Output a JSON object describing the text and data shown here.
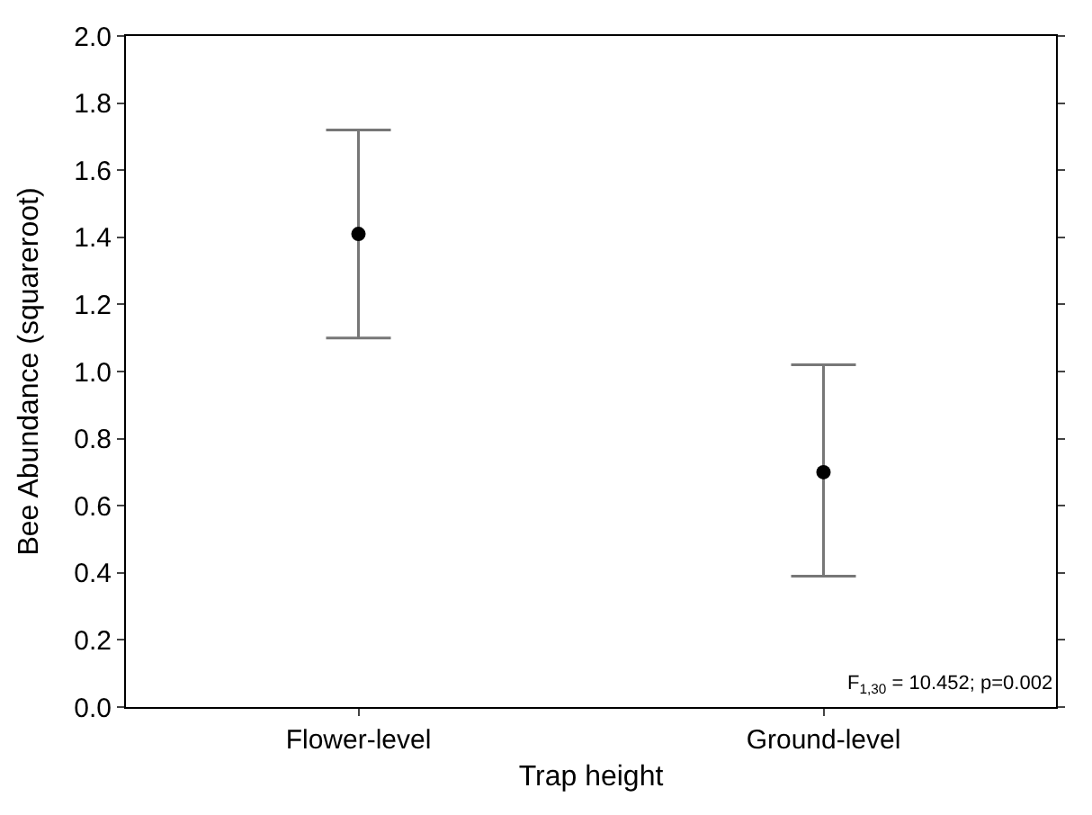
{
  "chart_data": {
    "type": "scatter",
    "xlabel": "Trap height",
    "ylabel": "Bee Abundance (squareroot)",
    "categories": [
      "Flower-level",
      "Ground-level"
    ],
    "series": [
      {
        "color": "#000000",
        "values": [
          1.41,
          0.7
        ],
        "errors": [
          [
            1.1,
            1.72
          ],
          [
            0.39,
            1.02
          ]
        ]
      }
    ],
    "ylim": [
      0,
      2.0
    ],
    "yticks": [
      {
        "value": 0,
        "label": "0.0"
      },
      0.2,
      0.4,
      0.6,
      0.8,
      {
        "value": 1,
        "label": "1.0"
      },
      1.2,
      1.4,
      1.6,
      1.8,
      {
        "value": 2,
        "label": "2.0"
      }
    ],
    "marker": "circle",
    "annotations": [
      "F$_{1,30}$ = 10.452; p=0.002"
    ]
  }
}
